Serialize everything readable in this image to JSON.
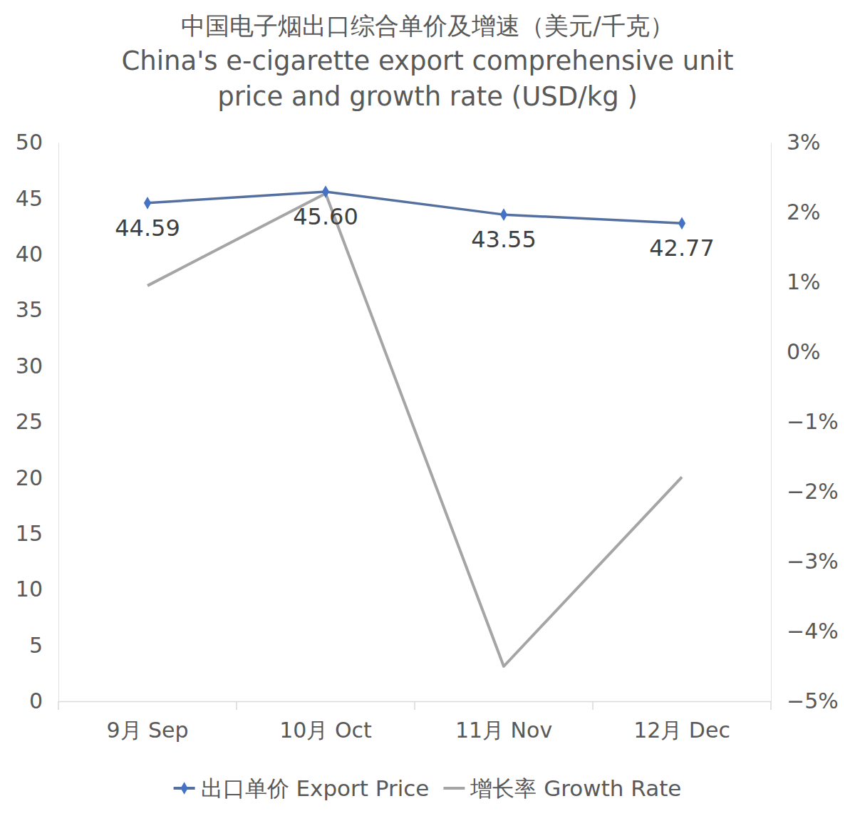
{
  "chart_data": {
    "type": "line",
    "title": "中国电子烟出口综合单价及增速（美元/千克）\nChina's e-cigarette export comprehensive unit\nprice and growth rate (USD/kg )",
    "categories": [
      "9月 Sep",
      "10月 Oct",
      "11月 Nov",
      "12月 Dec"
    ],
    "series": [
      {
        "name": "出口单价 Export Price",
        "color": "#5470a0",
        "values": [
          44.59,
          45.6,
          43.55,
          42.77
        ],
        "marker": "diamond",
        "data_labels": true
      },
      {
        "name": "增长率 Growth Rate",
        "color": "#a5a5a5",
        "values": [
          0.95,
          2.27,
          -4.5,
          -1.79
        ],
        "axis": "y2",
        "marker": "none"
      }
    ],
    "ylim": [
      0,
      50
    ],
    "yticks": [
      0,
      5,
      10,
      15,
      20,
      25,
      30,
      35,
      40,
      45,
      50
    ],
    "y2lim": [
      -5,
      3
    ],
    "y2ticks": [
      {
        "value": 3,
        "label": "3%"
      },
      {
        "value": 2,
        "label": "2%"
      },
      {
        "value": 1,
        "label": "1%"
      },
      {
        "value": 0,
        "label": "0%"
      },
      {
        "value": -1,
        "label": "−1%"
      },
      {
        "value": -2,
        "label": "−2%"
      },
      {
        "value": -3,
        "label": "−3%"
      },
      {
        "value": -4,
        "label": "−4%"
      },
      {
        "value": -5,
        "label": "−5%"
      }
    ],
    "grid": false,
    "legend": "bottom"
  }
}
